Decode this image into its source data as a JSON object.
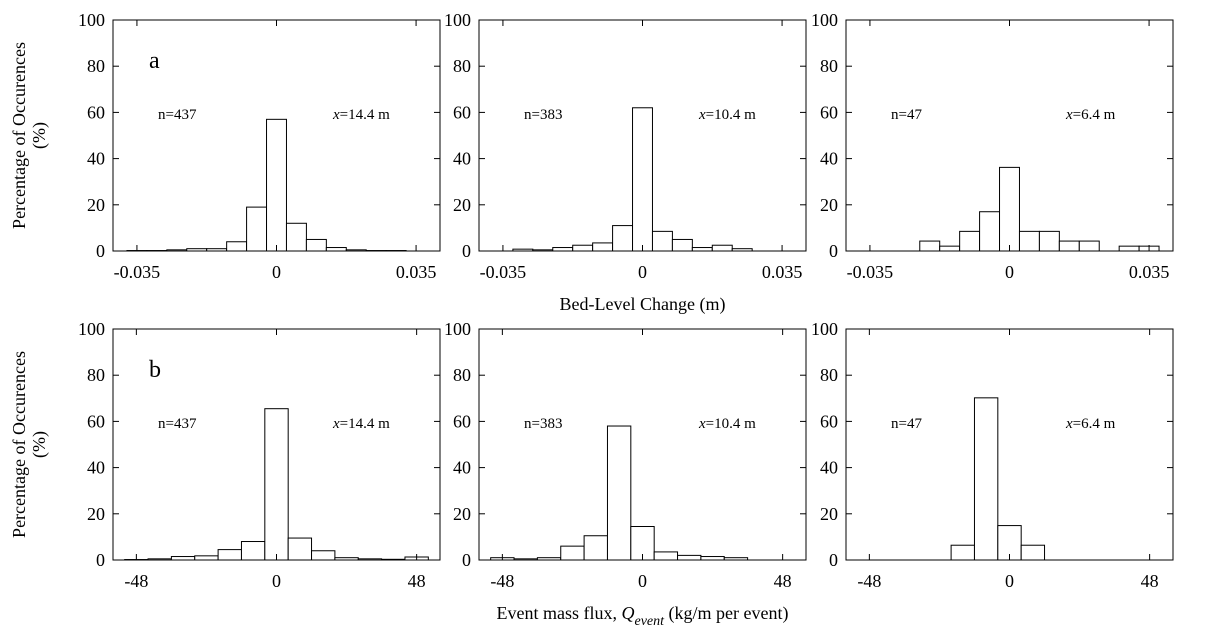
{
  "chart_data": [
    {
      "type": "histogram",
      "panel_label": "a",
      "ylabel": [
        "Percentage of Occurences",
        "(%)"
      ],
      "n_label": "n=437",
      "location": {
        "var": "x",
        "text": "=14.4 m"
      },
      "bins": [
        -0.0375,
        -0.0325,
        -0.0275,
        -0.0225,
        -0.0175,
        -0.0125,
        -0.0075,
        -0.0025,
        0.0025,
        0.0075,
        0.0125,
        0.0175,
        0.0225,
        0.0275,
        0.0325,
        0.0375
      ],
      "values": [
        0.2,
        0.2,
        0.5,
        1,
        1,
        4,
        19,
        57,
        12,
        5,
        1.5,
        0.5,
        0.2,
        0.2,
        0
      ],
      "xlim": [
        -0.041,
        0.041
      ],
      "xticks": [
        -0.035,
        0,
        0.035
      ],
      "ylim": [
        0,
        100
      ],
      "yticks": [
        0,
        20,
        40,
        60,
        80,
        100
      ],
      "color": "#ffffff",
      "edgecolor": "#000000"
    },
    {
      "type": "histogram",
      "xlabel": [
        "Bed-Level Change (m)"
      ],
      "n_label": "n=383",
      "location": {
        "var": "x",
        "text": "=10.4 m"
      },
      "bins": [
        -0.0375,
        -0.0325,
        -0.0275,
        -0.0225,
        -0.0175,
        -0.0125,
        -0.0075,
        -0.0025,
        0.0025,
        0.0075,
        0.0125,
        0.0175,
        0.0225,
        0.0275,
        0.0325,
        0.0375
      ],
      "values": [
        0,
        0.8,
        0.5,
        1.5,
        2.5,
        3.5,
        11,
        62,
        8.5,
        5,
        1.5,
        2.5,
        1,
        0,
        0
      ],
      "xlim": [
        -0.041,
        0.041
      ],
      "xticks": [
        -0.035,
        0,
        0.035
      ],
      "ylim": [
        0,
        100
      ],
      "yticks": [
        0,
        20,
        40,
        60,
        80,
        100
      ],
      "color": "#ffffff",
      "edgecolor": "#000000"
    },
    {
      "type": "histogram",
      "n_label": "n=47",
      "location": {
        "var": "x",
        "text": "=6.4 m"
      },
      "bins": [
        -0.0375,
        -0.0325,
        -0.0275,
        -0.0225,
        -0.0175,
        -0.0125,
        -0.0075,
        -0.0025,
        0.0025,
        0.0075,
        0.0125,
        0.0175,
        0.0225,
        0.0275,
        0.0325,
        0.0375
      ],
      "values": [
        0,
        0,
        0,
        4.3,
        2.1,
        8.5,
        17,
        36.2,
        8.5,
        8.5,
        4.3,
        4.3,
        0,
        2.1,
        2.1
      ],
      "xlim": [
        -0.041,
        0.041
      ],
      "xticks": [
        -0.035,
        0,
        0.035
      ],
      "ylim": [
        0,
        100
      ],
      "yticks": [
        0,
        20,
        40,
        60,
        80,
        100
      ],
      "color": "#ffffff",
      "edgecolor": "#000000"
    },
    {
      "type": "histogram",
      "panel_label": "b",
      "ylabel": [
        "Percentage of Occurences",
        "(%)"
      ],
      "n_label": "n=437",
      "location": {
        "var": "x",
        "text": "=14.4 m"
      },
      "bins": [
        -52,
        -44,
        -36,
        -28,
        -20,
        -12,
        -4,
        4,
        12,
        20,
        28,
        36,
        44,
        52
      ],
      "values": [
        0.2,
        0.5,
        1.5,
        1.8,
        4.5,
        8,
        65.5,
        9.5,
        4,
        1,
        0.5,
        0.3,
        1.3
      ],
      "xlim": [
        -56,
        56
      ],
      "xticks": [
        -48,
        0,
        48
      ],
      "ylim": [
        0,
        100
      ],
      "yticks": [
        0,
        20,
        40,
        60,
        80,
        100
      ],
      "color": "#ffffff",
      "edgecolor": "#000000"
    },
    {
      "type": "histogram",
      "xlabel": [
        "Event mass flux, ",
        "Q",
        "event",
        " (kg/m per event)"
      ],
      "n_label": "n=383",
      "location": {
        "var": "x",
        "text": "=10.4 m"
      },
      "bins": [
        -52,
        -44,
        -36,
        -28,
        -20,
        -12,
        -4,
        4,
        12,
        20,
        28,
        36,
        44,
        52
      ],
      "values": [
        1,
        0.5,
        1,
        6,
        10.5,
        58,
        14.5,
        3.5,
        2,
        1.5,
        1,
        0,
        0
      ],
      "xlim": [
        -56,
        56
      ],
      "xticks": [
        -48,
        0,
        48
      ],
      "ylim": [
        0,
        100
      ],
      "yticks": [
        0,
        20,
        40,
        60,
        80,
        100
      ],
      "color": "#ffffff",
      "edgecolor": "#000000"
    },
    {
      "type": "histogram",
      "n_label": "n=47",
      "location": {
        "var": "x",
        "text": "=6.4 m"
      },
      "bins": [
        -52,
        -44,
        -36,
        -28,
        -20,
        -12,
        -4,
        4,
        12,
        20,
        28,
        36,
        44,
        52
      ],
      "values": [
        0,
        0,
        0,
        0,
        6.4,
        70.2,
        14.9,
        6.4,
        0,
        0,
        0,
        0,
        0
      ],
      "xlim": [
        -56,
        56
      ],
      "xticks": [
        -48,
        0,
        48
      ],
      "ylim": [
        0,
        100
      ],
      "yticks": [
        0,
        20,
        40,
        60,
        80,
        100
      ],
      "color": "#ffffff",
      "edgecolor": "#000000"
    }
  ]
}
